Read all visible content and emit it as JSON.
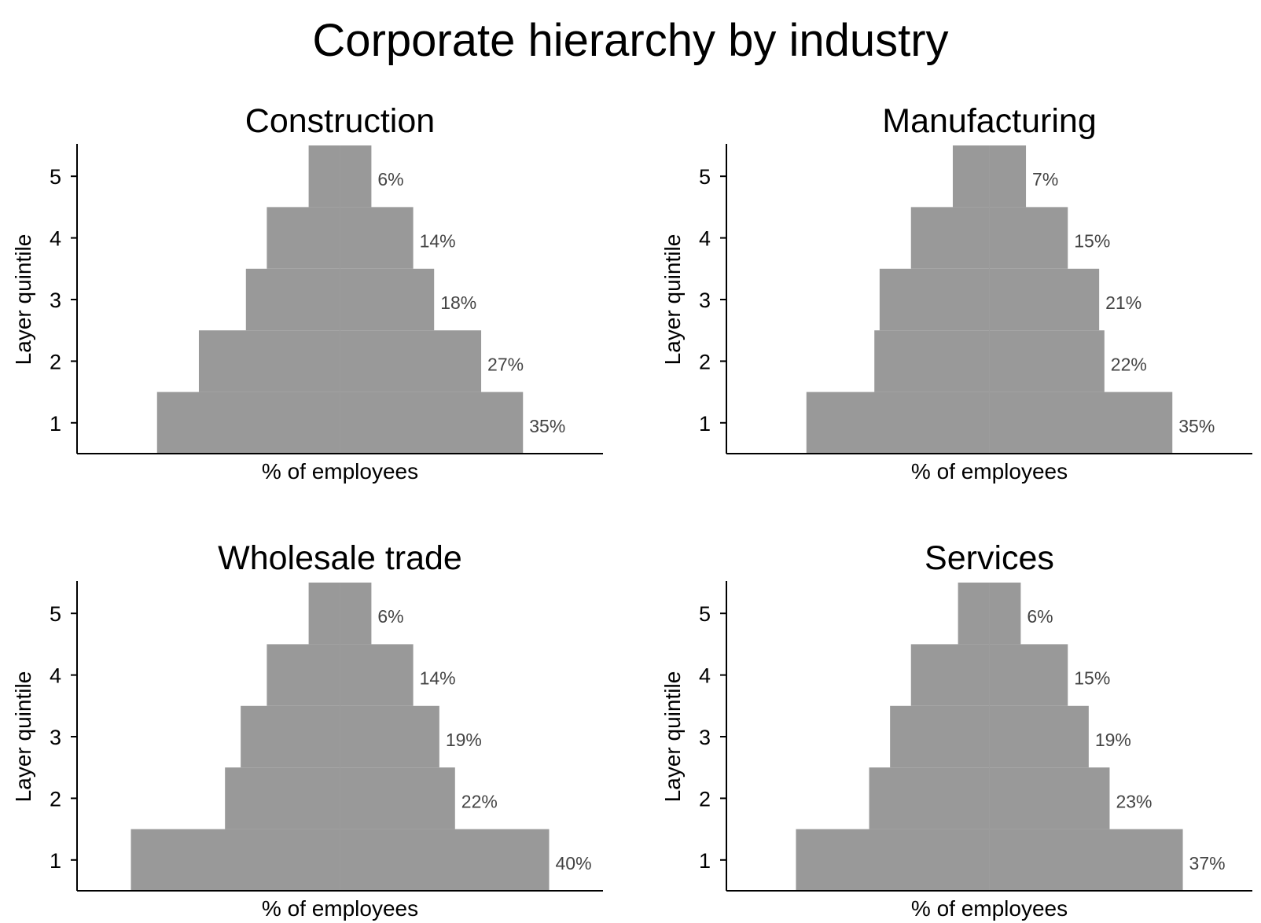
{
  "title": "Corporate hierarchy by industry",
  "chart_data": [
    {
      "type": "bar",
      "orientation": "horizontal-centered",
      "title": "Construction",
      "xlabel": "% of employees",
      "ylabel": "Layer quintile",
      "categories": [
        "1",
        "2",
        "3",
        "4",
        "5"
      ],
      "values": [
        35,
        27,
        18,
        14,
        6
      ],
      "value_labels": [
        "35%",
        "27%",
        "18%",
        "14%",
        "6%"
      ],
      "color": "#999999"
    },
    {
      "type": "bar",
      "orientation": "horizontal-centered",
      "title": "Manufacturing",
      "xlabel": "% of employees",
      "ylabel": "Layer quintile",
      "categories": [
        "1",
        "2",
        "3",
        "4",
        "5"
      ],
      "values": [
        35,
        22,
        21,
        15,
        7
      ],
      "value_labels": [
        "35%",
        "22%",
        "21%",
        "15%",
        "7%"
      ],
      "color": "#999999"
    },
    {
      "type": "bar",
      "orientation": "horizontal-centered",
      "title": "Wholesale trade",
      "xlabel": "% of employees",
      "ylabel": "Layer quintile",
      "categories": [
        "1",
        "2",
        "3",
        "4",
        "5"
      ],
      "values": [
        40,
        22,
        19,
        14,
        6
      ],
      "value_labels": [
        "40%",
        "22%",
        "19%",
        "14%",
        "6%"
      ],
      "color": "#999999"
    },
    {
      "type": "bar",
      "orientation": "horizontal-centered",
      "title": "Services",
      "xlabel": "% of employees",
      "ylabel": "Layer quintile",
      "categories": [
        "1",
        "2",
        "3",
        "4",
        "5"
      ],
      "values": [
        37,
        23,
        19,
        15,
        6
      ],
      "value_labels": [
        "37%",
        "23%",
        "19%",
        "15%",
        "6%"
      ],
      "color": "#999999"
    }
  ]
}
